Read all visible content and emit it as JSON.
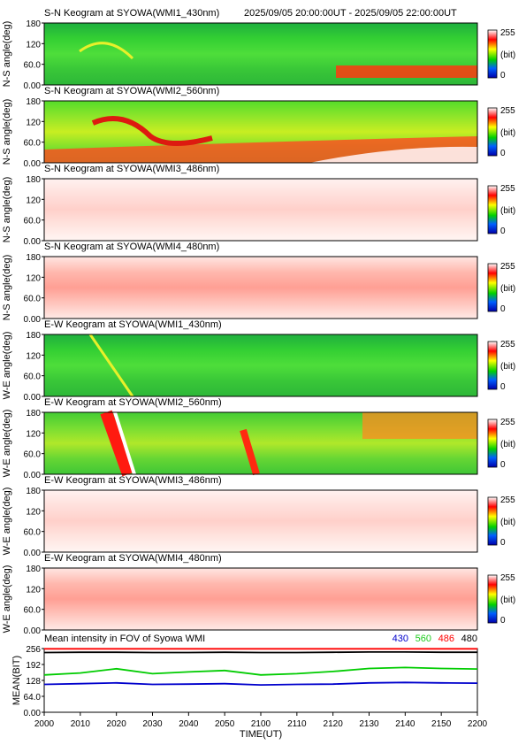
{
  "header": {
    "panel_title_1": "S-N Keogram at SYOWA(WMI1_430nm)",
    "time_range": "2025/09/05 20:00:00UT - 2025/09/05 22:00:00UT"
  },
  "colorbar": {
    "max_label": "255",
    "unit_label": "(bit)",
    "min_label": "0"
  },
  "chart_data": [
    {
      "type": "heatmap",
      "title": "S-N Keogram at SYOWA(WMI1_430nm)",
      "ylabel": "N-S angle(deg)",
      "ylim": [
        0,
        180
      ],
      "yticks": [
        "0.00",
        "60.0",
        "120",
        "180"
      ],
      "clim": [
        0,
        255
      ],
      "colormap": "rainbow (blue-green-yellow-red-white)",
      "style": "green",
      "background_level": 150,
      "features": "mostly green; faint yellow arc ~20:20 near 120 deg; red band near 20-40 deg after 21:30"
    },
    {
      "type": "heatmap",
      "title": "S-N Keogram at SYOWA(WMI2_560nm)",
      "ylabel": "N-S angle(deg)",
      "ylim": [
        0,
        180
      ],
      "yticks": [
        "0.00",
        "60.0",
        "120",
        "180"
      ],
      "clim": [
        0,
        255
      ],
      "colormap": "rainbow",
      "style": "green-yellow",
      "background_level": 160,
      "features": "red/white arc structure 20:10-20:55 near 80-120 deg; red-white band below 60 deg from 20:40 to 22:00"
    },
    {
      "type": "heatmap",
      "title": "S-N Keogram at SYOWA(WMI3_486nm)",
      "ylabel": "N-S angle(deg)",
      "ylim": [
        0,
        180
      ],
      "yticks": [
        "0.00",
        "60.0",
        "120",
        "180"
      ],
      "clim": [
        0,
        255
      ],
      "colormap": "rainbow",
      "style": "saturated",
      "background_level": 255,
      "features": "near-saturated pink/white; pink band near 120 deg"
    },
    {
      "type": "heatmap",
      "title": "S-N Keogram at SYOWA(WMI4_480nm)",
      "ylabel": "N-S angle(deg)",
      "ylim": [
        0,
        180
      ],
      "yticks": [
        "0.00",
        "60.0",
        "120",
        "180"
      ],
      "clim": [
        0,
        255
      ],
      "colormap": "rainbow",
      "style": "saturated-strong",
      "background_level": 255,
      "features": "near-saturated; stronger red band near 120-150 deg"
    },
    {
      "type": "heatmap",
      "title": "E-W Keogram at SYOWA(WMI1_430nm)",
      "ylabel": "W-E angle(deg)",
      "ylim": [
        0,
        180
      ],
      "yticks": [
        "0.00",
        "60.0",
        "120",
        "180"
      ],
      "clim": [
        0,
        255
      ],
      "colormap": "rainbow",
      "style": "green",
      "background_level": 150,
      "features": "green; thin yellow streak near 20:20; darker green around 60 deg"
    },
    {
      "type": "heatmap",
      "title": "E-W Keogram at SYOWA(WMI2_560nm)",
      "ylabel": "W-E angle(deg)",
      "ylim": [
        0,
        180
      ],
      "yticks": [
        "0.00",
        "60.0",
        "120",
        "180"
      ],
      "clim": [
        0,
        255
      ],
      "colormap": "rainbow",
      "style": "green-red",
      "background_level": 160,
      "features": "red/white streaks 20:15-20:25 and near 20:55; orange/red after 21:35"
    },
    {
      "type": "heatmap",
      "title": "E-W Keogram at SYOWA(WMI3_486nm)",
      "ylabel": "W-E angle(deg)",
      "ylim": [
        0,
        180
      ],
      "yticks": [
        "0.00",
        "60.0",
        "120",
        "180"
      ],
      "clim": [
        0,
        255
      ],
      "colormap": "rainbow",
      "style": "saturated",
      "background_level": 255,
      "features": "near-saturated; pink band near 60-90 deg until ~21:35"
    },
    {
      "type": "heatmap",
      "title": "E-W Keogram at SYOWA(WMI4_480nm)",
      "ylabel": "W-E angle(deg)",
      "ylim": [
        0,
        180
      ],
      "yticks": [
        "0.00",
        "60.0",
        "120",
        "180"
      ],
      "clim": [
        0,
        255
      ],
      "colormap": "rainbow",
      "style": "saturated-strong",
      "background_level": 255,
      "features": "near-saturated; red band near 40-100 deg until ~21:35"
    },
    {
      "type": "line",
      "title": "Mean intensity in FOV of Syowa WMI",
      "ylabel": "MEAN(BIT)",
      "xlabel": "TIME(UT)",
      "ylim": [
        0,
        256
      ],
      "yticks": [
        "0.00",
        "64.0",
        "128",
        "192",
        "256"
      ],
      "xlim": [
        2000,
        2200
      ],
      "xticks": [
        "2000",
        "2010",
        "2020",
        "2030",
        "2040",
        "2050",
        "2100",
        "2110",
        "2120",
        "2130",
        "2140",
        "2150",
        "2200"
      ],
      "series": [
        {
          "name": "430",
          "color": "#0000cc",
          "x": [
            2000,
            2010,
            2020,
            2030,
            2040,
            2050,
            2100,
            2110,
            2120,
            2130,
            2140,
            2150,
            2200
          ],
          "values": [
            112,
            115,
            118,
            112,
            113,
            115,
            110,
            112,
            113,
            118,
            120,
            118,
            117
          ]
        },
        {
          "name": "560",
          "color": "#00cc00",
          "x": [
            2000,
            2010,
            2020,
            2030,
            2040,
            2050,
            2100,
            2110,
            2120,
            2130,
            2140,
            2150,
            2200
          ],
          "values": [
            150,
            158,
            175,
            155,
            162,
            168,
            150,
            155,
            164,
            176,
            180,
            176,
            174
          ]
        },
        {
          "name": "486",
          "color": "#ff0000",
          "x": [
            2000,
            2010,
            2020,
            2030,
            2040,
            2050,
            2100,
            2110,
            2120,
            2130,
            2140,
            2150,
            2200
          ],
          "values": [
            255,
            255,
            255,
            255,
            255,
            255,
            255,
            255,
            255,
            255,
            255,
            255,
            255
          ]
        },
        {
          "name": "480",
          "color": "#000000",
          "x": [
            2000,
            2010,
            2020,
            2030,
            2040,
            2050,
            2100,
            2110,
            2120,
            2130,
            2140,
            2150,
            2200
          ],
          "values": [
            240,
            241,
            241,
            240,
            240,
            241,
            240,
            240,
            241,
            242,
            242,
            241,
            241
          ]
        }
      ]
    }
  ]
}
